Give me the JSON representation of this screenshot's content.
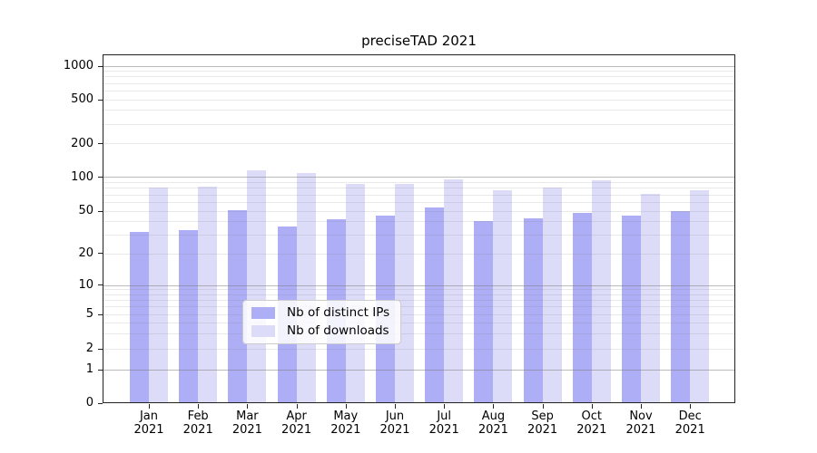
{
  "chart_data": {
    "type": "bar",
    "title": "preciseTAD 2021",
    "categories": [
      "Jan 2021",
      "Feb 2021",
      "Mar 2021",
      "Apr 2021",
      "May 2021",
      "Jun 2021",
      "Jul 2021",
      "Aug 2021",
      "Sep 2021",
      "Oct 2021",
      "Nov 2021",
      "Dec 2021"
    ],
    "series": [
      {
        "name": "Nb of distinct IPs",
        "color": "#aeaef6",
        "values": [
          32,
          33,
          51,
          36,
          42,
          45,
          54,
          40,
          43,
          48,
          45,
          50
        ]
      },
      {
        "name": "Nb of downloads",
        "color": "#dcdcf8",
        "values": [
          81,
          83,
          116,
          110,
          87,
          87,
          96,
          77,
          82,
          94,
          72,
          77
        ]
      }
    ],
    "xlabel": "",
    "ylabel": "",
    "y_ticks": [
      0,
      1,
      2,
      5,
      10,
      20,
      50,
      100,
      200,
      500,
      1000
    ],
    "ylim": [
      0,
      1000
    ],
    "y_scale": "log-like with zero baseline",
    "grid": "horizontal major and minor gridlines drawn over bars",
    "legend_position": "inside lower-center"
  }
}
